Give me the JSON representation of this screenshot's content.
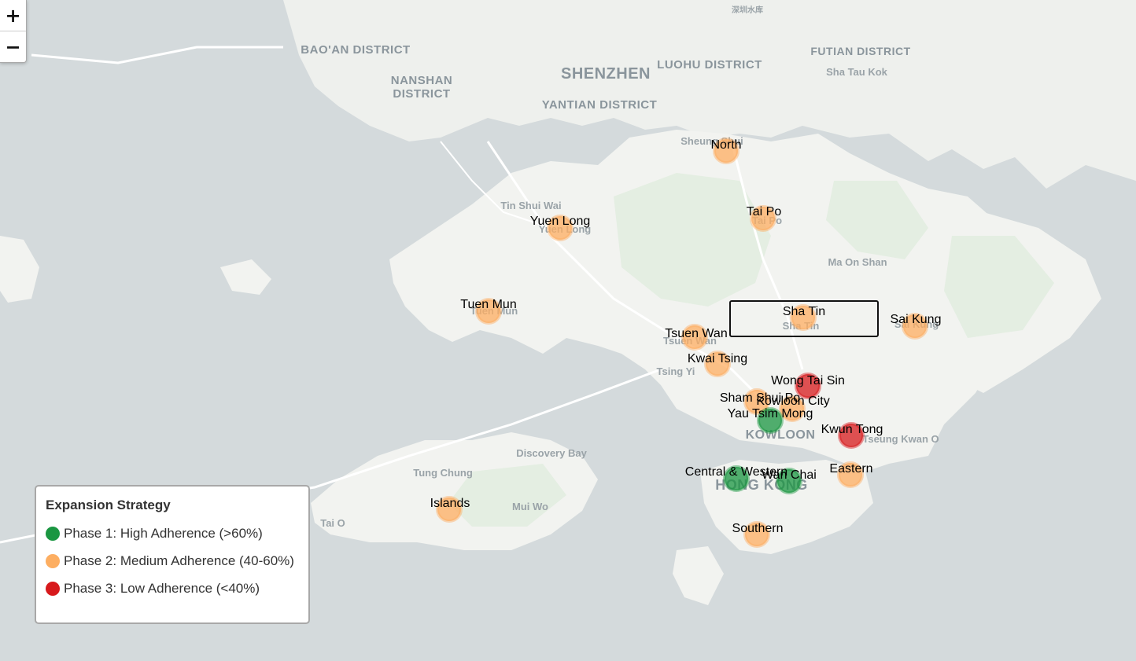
{
  "map": {
    "zoom_in": "+",
    "zoom_out": "−",
    "place_labels": [
      {
        "text": "深圳水库",
        "cls": "geo-sm",
        "size": 10
      },
      {
        "text": "BAO'AN DISTRICT",
        "cls": "geo",
        "size": 15
      },
      {
        "text": "NANSHAN",
        "cls": "geo",
        "size": 15
      },
      {
        "text": "DISTRICT",
        "cls": "geo",
        "size": 15
      },
      {
        "text": "SHENZHEN",
        "cls": "geo",
        "size": 20
      },
      {
        "text": "LUOHU DISTRICT",
        "cls": "geo",
        "size": 15
      },
      {
        "text": "FUTIAN DISTRICT",
        "cls": "geo",
        "size": 14
      },
      {
        "text": "YANTIAN DISTRICT",
        "cls": "geo",
        "size": 15
      },
      {
        "text": "Sha Tau Kok",
        "cls": "geo-sm",
        "size": 13
      },
      {
        "text": "Sheung Shui",
        "cls": "geo-sm",
        "size": 13
      },
      {
        "text": "Tin Shui Wai",
        "cls": "geo-sm",
        "size": 13
      },
      {
        "text": "Yuen Long",
        "cls": "geo-sm",
        "size": 13
      },
      {
        "text": "Tai Po",
        "cls": "geo-sm",
        "size": 13
      },
      {
        "text": "Ma On Shan",
        "cls": "geo-sm",
        "size": 13
      },
      {
        "text": "Tuen Mun",
        "cls": "geo-sm",
        "size": 13
      },
      {
        "text": "Sha Tin",
        "cls": "geo-sm",
        "size": 13
      },
      {
        "text": "Sai Kung",
        "cls": "geo-sm",
        "size": 13
      },
      {
        "text": "Tsuen Wan",
        "cls": "geo-sm",
        "size": 13
      },
      {
        "text": "Tsing Yi",
        "cls": "geo-sm",
        "size": 13
      },
      {
        "text": "KOWLOON",
        "cls": "geo",
        "size": 16
      },
      {
        "text": "Tseung Kwan O",
        "cls": "geo-sm",
        "size": 13
      },
      {
        "text": "Discovery Bay",
        "cls": "geo-sm",
        "size": 13
      },
      {
        "text": "Tung Chung",
        "cls": "geo-sm",
        "size": 13
      },
      {
        "text": "HONG KONG",
        "cls": "geo",
        "size": 18
      },
      {
        "text": "Mui Wo",
        "cls": "geo-sm",
        "size": 13
      },
      {
        "text": "Tai O",
        "cls": "geo-sm",
        "size": 13
      }
    ],
    "colors": {
      "water": "#d4dadc",
      "land": "#f2f3f0",
      "green": "#e4eee2",
      "phase1": "#1a9641",
      "phase2": "#fdae61",
      "phase3": "#d7191c"
    },
    "districts": [
      {
        "name": "North",
        "phase": 2
      },
      {
        "name": "Tai Po",
        "phase": 2
      },
      {
        "name": "Yuen Long",
        "phase": 2
      },
      {
        "name": "Tuen Mun",
        "phase": 2
      },
      {
        "name": "Sha Tin",
        "phase": 2
      },
      {
        "name": "Sai Kung",
        "phase": 2
      },
      {
        "name": "Tsuen Wan",
        "phase": 2
      },
      {
        "name": "Kwai Tsing",
        "phase": 2
      },
      {
        "name": "Wong Tai Sin",
        "phase": 3
      },
      {
        "name": "Sham Shui Po",
        "phase": 2
      },
      {
        "name": "Kowloon City",
        "phase": 2
      },
      {
        "name": "Yau Tsim Mong",
        "phase": 1
      },
      {
        "name": "Kwun Tong",
        "phase": 3
      },
      {
        "name": "Central & Western",
        "phase": 1
      },
      {
        "name": "Wan Chai",
        "phase": 1
      },
      {
        "name": "Eastern",
        "phase": 2
      },
      {
        "name": "Islands",
        "phase": 2
      },
      {
        "name": "Southern",
        "phase": 2
      }
    ]
  },
  "legend": {
    "title": "Expansion Strategy",
    "items": [
      {
        "label": "Phase 1: High Adherence (>60%)",
        "color": "#1a9641"
      },
      {
        "label": "Phase 2: Medium Adherence (40-60%)",
        "color": "#fdae61"
      },
      {
        "label": "Phase 3: Low Adherence (<40%)",
        "color": "#d7191c"
      }
    ]
  }
}
